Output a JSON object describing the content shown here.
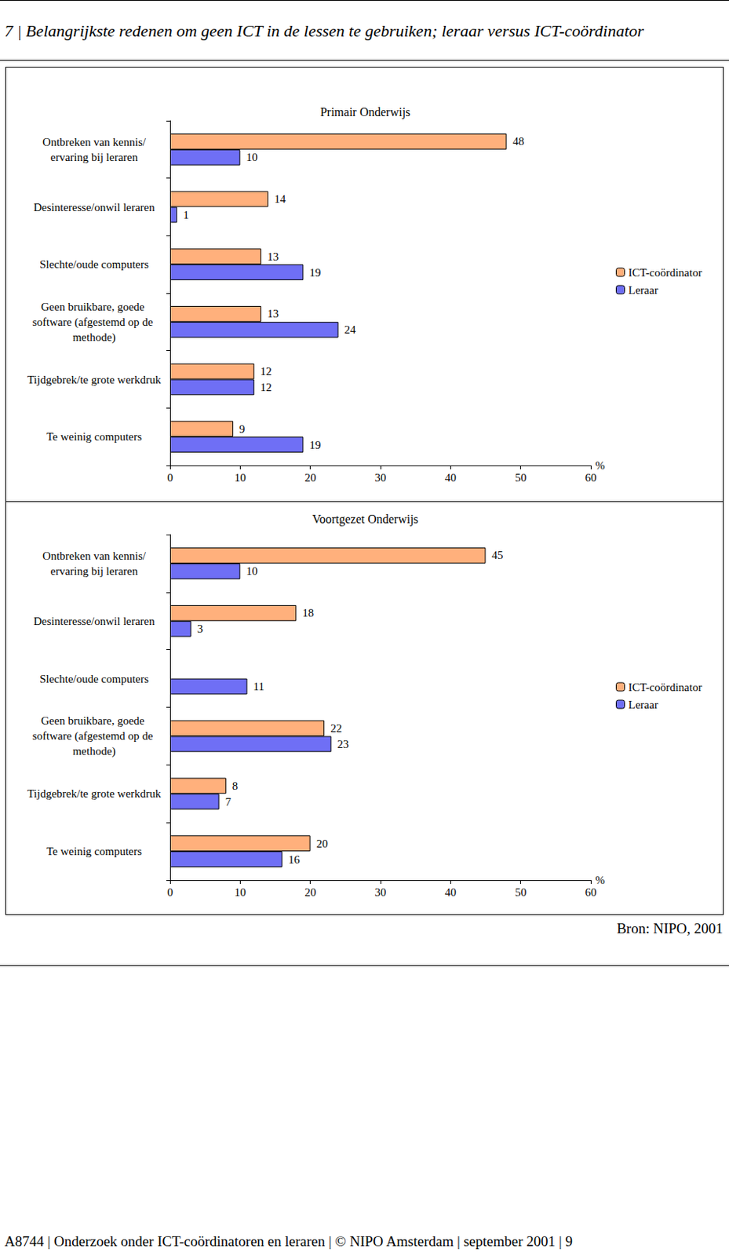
{
  "header": {
    "title": "7 | Belangrijkste redenen om geen ICT in de lessen te gebruiken; leraar versus ICT-coördinator"
  },
  "chart_data": [
    {
      "type": "bar",
      "title": "Primair Onderwijs",
      "orientation": "horizontal",
      "categories": [
        "Ontbreken van kennis/ervaring bij leraren",
        "Desinteresse/onwil leraren",
        "Slechte/oude computers",
        "Geen bruikbare, goede software (afgestemd op de methode)",
        "Tijdgebrek/te grote werkdruk",
        "Te weinig computers"
      ],
      "series": [
        {
          "name": "ICT-coördinator",
          "color": "#FFB07C",
          "values": [
            48,
            14,
            13,
            13,
            12,
            9
          ]
        },
        {
          "name": "Leraar",
          "color": "#6F6FF5",
          "values": [
            10,
            1,
            19,
            24,
            12,
            19
          ]
        }
      ],
      "xlim": [
        0,
        60
      ],
      "xticks": [
        0,
        10,
        20,
        30,
        40,
        50,
        60
      ],
      "xlabel": "%",
      "data_labels": true,
      "grid": false,
      "legend": "right"
    },
    {
      "type": "bar",
      "title": "Voortgezet Onderwijs",
      "orientation": "horizontal",
      "categories": [
        "Ontbreken van kennis/ervaring bij leraren",
        "Desinteresse/onwil leraren",
        "Slechte/oude computers",
        "Geen bruikbare, goede software (afgestemd op de methode)",
        "Tijdgebrek/te grote werkdruk",
        "Te weinig computers"
      ],
      "series": [
        {
          "name": "ICT-coördinator",
          "color": "#FFB07C",
          "values": [
            45,
            18,
            null,
            22,
            8,
            20
          ]
        },
        {
          "name": "Leraar",
          "color": "#6F6FF5",
          "values": [
            10,
            3,
            11,
            23,
            7,
            16
          ]
        }
      ],
      "xlim": [
        0,
        60
      ],
      "xticks": [
        0,
        10,
        20,
        30,
        40,
        50,
        60
      ],
      "xlabel": "%",
      "data_labels": true,
      "grid": false,
      "legend": "right"
    }
  ],
  "source": "Bron: NIPO, 2001",
  "footer": "A8744 | Onderzoek onder ICT-coördinatoren en leraren | © NIPO Amsterdam | september 2001 | 9"
}
